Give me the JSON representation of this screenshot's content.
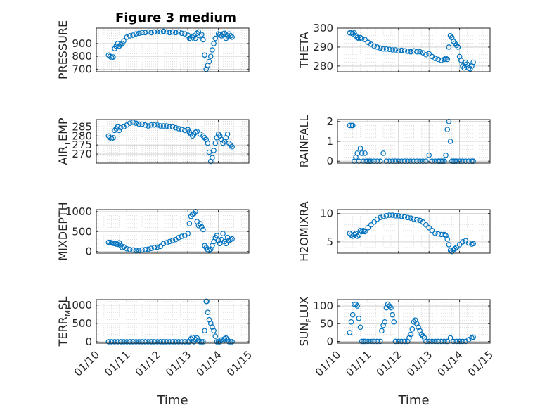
{
  "figure_title": "Figure 3 medium",
  "chart_data": [
    {
      "type": "scatter",
      "ylabel": "PRESSURE",
      "xlim": [
        0,
        5
      ],
      "ylim": [
        680,
        1020
      ],
      "yticks": [
        700,
        800,
        900
      ],
      "xticks": [
        "01/10",
        "01/11",
        "01/12",
        "01/13",
        "01/14",
        "01/15"
      ],
      "grid": true,
      "marker_color": "#0072BD",
      "series": [
        {
          "x": [
            0.4,
            0.45,
            0.5,
            0.55,
            0.6,
            0.65,
            0.7,
            0.75,
            0.8,
            0.85,
            0.9,
            1.0,
            1.1,
            1.2,
            1.3,
            1.4,
            1.5,
            1.6,
            1.7,
            1.8,
            1.9,
            2.0,
            2.1,
            2.2,
            2.3,
            2.4,
            2.5,
            2.6,
            2.7,
            2.8,
            2.9,
            3.0,
            3.05,
            3.1,
            3.15,
            3.2,
            3.25,
            3.3,
            3.35,
            3.4,
            3.45,
            3.5,
            3.55,
            3.6,
            3.65,
            3.7,
            3.75,
            3.8,
            3.85,
            3.9,
            4.0,
            4.05,
            4.1,
            4.15,
            4.2,
            4.25,
            4.3,
            4.35,
            4.4,
            4.45
          ],
          "y": [
            810,
            800,
            790,
            795,
            860,
            880,
            900,
            880,
            890,
            900,
            920,
            950,
            960,
            965,
            975,
            980,
            985,
            985,
            990,
            985,
            990,
            990,
            990,
            995,
            990,
            985,
            990,
            985,
            990,
            980,
            975,
            965,
            940,
            935,
            950,
            960,
            940,
            980,
            990,
            960,
            970,
            930,
            810,
            700,
            730,
            760,
            800,
            850,
            900,
            940,
            975,
            970,
            960,
            975,
            980,
            940,
            960,
            975,
            960,
            950
          ]
        }
      ]
    },
    {
      "type": "scatter",
      "ylabel": "THETA",
      "xlim": [
        0,
        5
      ],
      "ylim": [
        277,
        300
      ],
      "yticks": [
        280,
        290,
        300
      ],
      "xticks": [
        "01/10",
        "01/11",
        "01/12",
        "01/13",
        "01/14",
        "01/15"
      ],
      "grid": true,
      "marker_color": "#0072BD",
      "series": [
        {
          "x": [
            0.4,
            0.45,
            0.5,
            0.55,
            0.6,
            0.65,
            0.7,
            0.75,
            0.8,
            0.9,
            1.0,
            1.1,
            1.2,
            1.3,
            1.4,
            1.5,
            1.6,
            1.7,
            1.8,
            1.9,
            2.0,
            2.1,
            2.2,
            2.3,
            2.4,
            2.5,
            2.6,
            2.7,
            2.8,
            2.9,
            3.0,
            3.1,
            3.2,
            3.3,
            3.4,
            3.5,
            3.55,
            3.6,
            3.65,
            3.7,
            3.75,
            3.8,
            3.85,
            3.9,
            3.95,
            4.0,
            4.05,
            4.1,
            4.15,
            4.2,
            4.25,
            4.3,
            4.35,
            4.4,
            4.45
          ],
          "y": [
            297.5,
            297.5,
            297,
            297.5,
            296,
            295,
            294.5,
            295,
            294.5,
            294,
            292.5,
            291.5,
            290.5,
            290,
            289.5,
            289,
            289,
            288.8,
            288.5,
            288.5,
            288,
            288.3,
            288,
            287.8,
            287.5,
            288,
            287.5,
            287.5,
            287,
            286,
            286.5,
            285,
            284,
            283.5,
            283,
            283.5,
            284,
            283.5,
            290,
            296,
            295,
            293,
            292,
            291,
            290,
            285,
            283,
            280,
            279,
            282,
            281,
            279,
            278.5,
            280,
            282
          ]
        }
      ]
    },
    {
      "type": "scatter",
      "ylabel_main": "AIR",
      "ylabel_sub": "T",
      "ylabel_rest": "EMP",
      "xlim": [
        0,
        5
      ],
      "ylim": [
        265,
        289
      ],
      "yticks": [
        270,
        275,
        280,
        285
      ],
      "xticks": [
        "01/10",
        "01/11",
        "01/12",
        "01/13",
        "01/14",
        "01/15"
      ],
      "grid": true,
      "marker_color": "#0072BD",
      "series": [
        {
          "x": [
            0.4,
            0.45,
            0.5,
            0.55,
            0.6,
            0.65,
            0.7,
            0.75,
            0.8,
            0.9,
            1.0,
            1.1,
            1.2,
            1.3,
            1.4,
            1.5,
            1.6,
            1.7,
            1.8,
            1.9,
            2.0,
            2.1,
            2.2,
            2.3,
            2.4,
            2.5,
            2.6,
            2.7,
            2.8,
            2.9,
            3.0,
            3.05,
            3.1,
            3.15,
            3.2,
            3.25,
            3.3,
            3.4,
            3.5,
            3.55,
            3.6,
            3.65,
            3.7,
            3.75,
            3.8,
            3.85,
            3.9,
            3.95,
            4.0,
            4.05,
            4.1,
            4.15,
            4.2,
            4.25,
            4.3,
            4.35,
            4.4,
            4.45
          ],
          "y": [
            280,
            279,
            278.5,
            279,
            283,
            284,
            285,
            283,
            284.5,
            285,
            286,
            287,
            287.5,
            287,
            286.5,
            286.5,
            286,
            285.5,
            286,
            286,
            286,
            285.5,
            285.5,
            285.5,
            285,
            285,
            284.5,
            284,
            283.5,
            283,
            283.5,
            282,
            281,
            280,
            281,
            282,
            282.5,
            281,
            280,
            279,
            278,
            276,
            271,
            266,
            268,
            272,
            276,
            279,
            281,
            280,
            278,
            276,
            277,
            279,
            281,
            276,
            275,
            274
          ]
        }
      ]
    },
    {
      "type": "scatter",
      "ylabel": "RAINFALL",
      "xlim": [
        0,
        5
      ],
      "ylim": [
        -0.1,
        2.1
      ],
      "yticks": [
        0,
        1,
        2
      ],
      "xticks": [
        "01/10",
        "01/11",
        "01/12",
        "01/13",
        "01/14",
        "01/15"
      ],
      "grid": true,
      "marker_color": "#0072BD",
      "series": [
        {
          "x": [
            0.4,
            0.45,
            0.5,
            0.55,
            0.6,
            0.65,
            0.7,
            0.75,
            0.8,
            0.85,
            0.9,
            0.95,
            1.0,
            1.05,
            1.1,
            1.2,
            1.3,
            1.4,
            1.5,
            1.6,
            1.7,
            1.8,
            1.9,
            2.0,
            2.1,
            2.2,
            2.3,
            2.4,
            2.5,
            2.6,
            2.7,
            2.8,
            2.9,
            3.0,
            3.1,
            3.2,
            3.3,
            3.35,
            3.4,
            3.45,
            3.5,
            3.55,
            3.6,
            3.65,
            3.7,
            3.75,
            3.8,
            3.85,
            3.9,
            4.0,
            4.1,
            4.2,
            4.3,
            4.4,
            4.45
          ],
          "y": [
            1.8,
            1.8,
            1.8,
            0,
            0.2,
            0.4,
            0,
            0.65,
            0.4,
            0,
            0.4,
            0,
            0,
            0,
            0,
            0,
            0,
            0,
            0.4,
            0,
            0,
            0,
            0,
            0,
            0,
            0,
            0,
            0,
            0,
            0,
            0,
            0,
            0,
            0.3,
            0,
            0,
            0,
            0,
            0,
            0,
            0,
            0.3,
            1.6,
            2.0,
            1.0,
            0,
            0,
            0,
            0,
            0,
            0,
            0,
            0,
            0,
            0
          ]
        }
      ]
    },
    {
      "type": "scatter",
      "ylabel": "MIXDEPTH",
      "xlim": [
        0,
        5
      ],
      "ylim": [
        -40,
        1050
      ],
      "yticks": [
        0,
        500,
        1000
      ],
      "xticks": [
        "01/10",
        "01/11",
        "01/12",
        "01/13",
        "01/14",
        "01/15"
      ],
      "grid": true,
      "marker_color": "#0072BD",
      "series": [
        {
          "x": [
            0.4,
            0.45,
            0.5,
            0.55,
            0.6,
            0.65,
            0.7,
            0.75,
            0.8,
            0.85,
            0.9,
            1.0,
            1.1,
            1.2,
            1.3,
            1.4,
            1.5,
            1.6,
            1.7,
            1.8,
            1.9,
            2.0,
            2.1,
            2.2,
            2.3,
            2.4,
            2.5,
            2.6,
            2.7,
            2.8,
            2.9,
            3.0,
            3.05,
            3.1,
            3.15,
            3.2,
            3.25,
            3.3,
            3.35,
            3.4,
            3.45,
            3.5,
            3.55,
            3.6,
            3.65,
            3.7,
            3.75,
            3.8,
            3.85,
            3.9,
            3.95,
            4.0,
            4.05,
            4.1,
            4.15,
            4.2,
            4.25,
            4.3,
            4.35,
            4.4,
            4.45
          ],
          "y": [
            230,
            230,
            220,
            210,
            200,
            190,
            180,
            220,
            150,
            100,
            120,
            70,
            50,
            40,
            30,
            30,
            40,
            50,
            60,
            80,
            100,
            110,
            130,
            200,
            220,
            250,
            280,
            300,
            350,
            380,
            400,
            450,
            700,
            880,
            930,
            950,
            1000,
            750,
            650,
            700,
            620,
            550,
            150,
            100,
            50,
            30,
            60,
            150,
            250,
            350,
            400,
            280,
            200,
            300,
            450,
            250,
            200,
            350,
            280,
            300,
            320
          ]
        }
      ]
    },
    {
      "type": "scatter",
      "ylabel": "H2OMIXRA",
      "xlim": [
        0,
        5
      ],
      "ylim": [
        3,
        10.7
      ],
      "yticks": [
        5,
        10
      ],
      "xticks": [
        "01/10",
        "01/11",
        "01/12",
        "01/13",
        "01/14",
        "01/15"
      ],
      "grid": true,
      "marker_color": "#0072BD",
      "series": [
        {
          "x": [
            0.4,
            0.45,
            0.5,
            0.55,
            0.6,
            0.65,
            0.7,
            0.75,
            0.8,
            0.85,
            0.9,
            1.0,
            1.1,
            1.2,
            1.3,
            1.4,
            1.5,
            1.6,
            1.7,
            1.8,
            1.9,
            2.0,
            2.1,
            2.2,
            2.3,
            2.4,
            2.5,
            2.6,
            2.7,
            2.8,
            2.9,
            3.0,
            3.1,
            3.2,
            3.3,
            3.4,
            3.5,
            3.55,
            3.6,
            3.65,
            3.7,
            3.75,
            3.8,
            3.85,
            3.9,
            4.0,
            4.1,
            4.2,
            4.3,
            4.4,
            4.45
          ],
          "y": [
            6.5,
            6.2,
            6,
            6.3,
            6.5,
            6,
            6.2,
            7,
            6.8,
            7,
            6.8,
            7.5,
            8,
            8.5,
            9,
            9.3,
            9.5,
            9.6,
            9.7,
            9.7,
            9.6,
            9.6,
            9.5,
            9.4,
            9.3,
            9.2,
            9,
            8.9,
            8.8,
            8.5,
            8,
            7.5,
            7,
            6.5,
            6.4,
            6.3,
            6.3,
            6.1,
            5.5,
            4.5,
            3.5,
            3.3,
            3.6,
            3.8,
            4,
            4.5,
            5,
            5.2,
            4.8,
            4.6,
            4.7
          ]
        }
      ]
    },
    {
      "type": "scatter",
      "ylabel_main": "TERR",
      "ylabel_sub": "M",
      "ylabel_rest": "SL",
      "xlim": [
        0,
        5
      ],
      "ylim": [
        -40,
        1150
      ],
      "yticks": [
        0,
        500,
        1000
      ],
      "xticks": [
        "01/10",
        "01/11",
        "01/12",
        "01/13",
        "01/14",
        "01/15"
      ],
      "grid": true,
      "marker_color": "#0072BD",
      "xlabel": "Time",
      "series": [
        {
          "x": [
            0.4,
            0.5,
            0.6,
            0.7,
            0.8,
            0.9,
            1.0,
            1.1,
            1.2,
            1.3,
            1.4,
            1.5,
            1.6,
            1.7,
            1.8,
            1.9,
            2.0,
            2.1,
            2.2,
            2.3,
            2.4,
            2.5,
            2.6,
            2.7,
            2.8,
            2.9,
            3.0,
            3.05,
            3.1,
            3.15,
            3.2,
            3.25,
            3.3,
            3.35,
            3.4,
            3.45,
            3.5,
            3.55,
            3.6,
            3.62,
            3.65,
            3.7,
            3.75,
            3.8,
            3.85,
            3.9,
            3.95,
            4.0,
            4.05,
            4.1,
            4.15,
            4.2,
            4.25,
            4.3,
            4.35,
            4.4,
            4.45
          ],
          "y": [
            0,
            0,
            0,
            0,
            0,
            0,
            0,
            0,
            0,
            0,
            0,
            0,
            0,
            0,
            0,
            0,
            0,
            0,
            0,
            0,
            0,
            0,
            0,
            0,
            0,
            0,
            0,
            0,
            80,
            120,
            0,
            60,
            100,
            40,
            0,
            0,
            0,
            300,
            1100,
            1100,
            800,
            600,
            500,
            400,
            300,
            150,
            0,
            0,
            0,
            50,
            20,
            80,
            100,
            50,
            0,
            0,
            0
          ]
        }
      ]
    },
    {
      "type": "scatter",
      "ylabel_main": "SUN",
      "ylabel_sub": "F",
      "ylabel_rest": "LUX",
      "xlim": [
        0,
        5
      ],
      "ylim": [
        -5,
        118
      ],
      "yticks": [
        0,
        50,
        100
      ],
      "xticks": [
        "01/10",
        "01/11",
        "01/12",
        "01/13",
        "01/14",
        "01/15"
      ],
      "grid": true,
      "marker_color": "#0072BD",
      "xlabel": "Time",
      "series": [
        {
          "x": [
            0.4,
            0.45,
            0.5,
            0.55,
            0.6,
            0.65,
            0.7,
            0.75,
            0.8,
            0.85,
            0.9,
            1.0,
            1.1,
            1.2,
            1.3,
            1.4,
            1.45,
            1.5,
            1.55,
            1.6,
            1.65,
            1.7,
            1.75,
            1.8,
            1.85,
            1.9,
            2.0,
            2.1,
            2.2,
            2.3,
            2.35,
            2.4,
            2.45,
            2.5,
            2.55,
            2.6,
            2.65,
            2.7,
            2.75,
            2.8,
            2.85,
            2.9,
            3.0,
            3.1,
            3.2,
            3.3,
            3.4,
            3.5,
            3.6,
            3.7,
            3.8,
            3.9,
            4.0,
            4.1,
            4.2,
            4.3,
            4.4,
            4.45
          ],
          "y": [
            25,
            55,
            75,
            105,
            105,
            100,
            65,
            40,
            0,
            0,
            0,
            0,
            0,
            0,
            0,
            0,
            30,
            45,
            55,
            95,
            105,
            100,
            95,
            75,
            55,
            0,
            0,
            0,
            0,
            0,
            10,
            20,
            35,
            55,
            60,
            50,
            40,
            30,
            20,
            15,
            10,
            0,
            0,
            0,
            0,
            0,
            0,
            0,
            0,
            10,
            0,
            0,
            0,
            0,
            0,
            5,
            10,
            12
          ]
        }
      ]
    }
  ]
}
